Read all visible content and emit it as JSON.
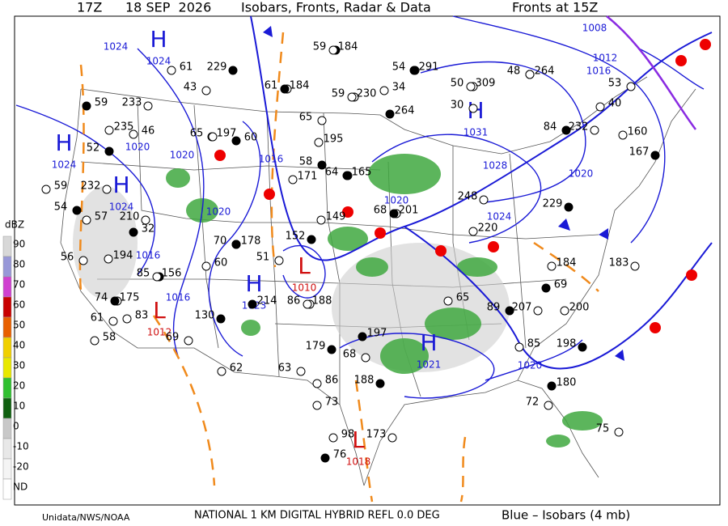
{
  "header": {
    "time": "17Z",
    "date": "18 SEP  2026",
    "title": "Isobars, Fronts, Radar & Data",
    "fronts": "Fronts at 15Z"
  },
  "footer": {
    "credit": "Unidata/NWS/NOAA",
    "product": "NATIONAL 1 KM DIGITAL HYBRID REFL 0.0 DEG",
    "legend": "Blue – Isobars (4 mb)"
  },
  "color_scale": {
    "unit": "dBZ",
    "labels": [
      "90",
      "80",
      "70",
      "60",
      "50",
      "40",
      "30",
      "20",
      "10",
      "0",
      "-10",
      "-20",
      "ND"
    ]
  },
  "pressure_centers": [
    {
      "label": "H",
      "value": "1024"
    },
    {
      "label": "H",
      "value": "1024"
    },
    {
      "label": "H",
      "value": "1024"
    },
    {
      "label": "H",
      "value": "1031"
    },
    {
      "label": "H",
      "value": "1023"
    },
    {
      "label": "H",
      "value": "1021"
    },
    {
      "label": "L",
      "value": "1010"
    },
    {
      "label": "L",
      "value": "1012"
    },
    {
      "label": "L",
      "value": "1018"
    }
  ],
  "isobar_labels": [
    "1024",
    "1020",
    "1016",
    "1008",
    "1012",
    "1016",
    "1028",
    "1024",
    "1020",
    "1020",
    "1020",
    "1016",
    "1020",
    "1016",
    "1020"
  ],
  "stations": [
    59,
    184,
    54,
    291,
    50,
    309,
    48,
    264,
    61,
    184,
    59,
    230,
    229,
    61,
    43,
    59,
    233,
    235,
    52,
    197,
    65,
    60,
    65,
    195,
    58,
    171,
    64,
    165,
    232,
    59,
    54,
    57,
    210,
    32,
    56,
    194,
    85,
    156,
    70,
    178,
    51,
    60,
    152,
    149,
    68,
    201,
    248,
    220,
    229,
    184,
    183,
    69,
    207,
    200,
    89,
    65,
    74,
    175,
    61,
    83,
    130,
    58,
    69,
    214,
    86,
    188,
    179,
    62,
    63,
    197,
    68,
    86,
    188,
    73,
    72,
    180,
    75,
    85,
    198,
    98,
    173,
    76,
    232,
    160,
    167,
    40,
    53,
    264,
    30,
    34,
    84,
    46
  ]
}
